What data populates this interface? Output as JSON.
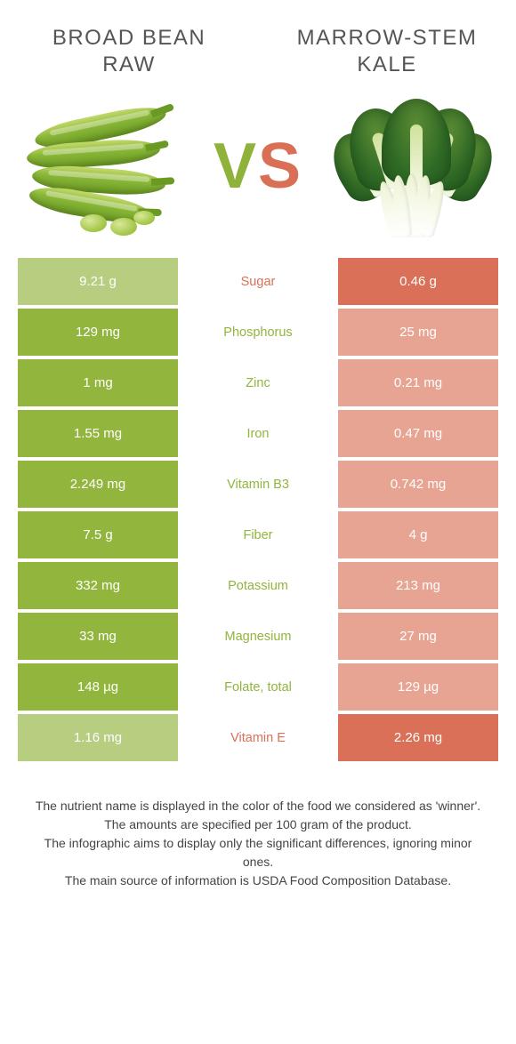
{
  "colors": {
    "left": "#91b53d",
    "right": "#da7057",
    "left_dim": "#b7cd7f",
    "right_dim": "#e8a493",
    "label_font": "#555555"
  },
  "header": {
    "left_title": "BROAD BEAN RAW",
    "right_title": "MARROW-STEM KALE"
  },
  "vs": {
    "v": "V",
    "s": "S"
  },
  "rows": [
    {
      "label": "Sugar",
      "left": "9.21 g",
      "right": "0.46 g",
      "winner": "right"
    },
    {
      "label": "Phosphorus",
      "left": "129 mg",
      "right": "25 mg",
      "winner": "left"
    },
    {
      "label": "Zinc",
      "left": "1 mg",
      "right": "0.21 mg",
      "winner": "left"
    },
    {
      "label": "Iron",
      "left": "1.55 mg",
      "right": "0.47 mg",
      "winner": "left"
    },
    {
      "label": "Vitamin B3",
      "left": "2.249 mg",
      "right": "0.742 mg",
      "winner": "left"
    },
    {
      "label": "Fiber",
      "left": "7.5 g",
      "right": "4 g",
      "winner": "left"
    },
    {
      "label": "Potassium",
      "left": "332 mg",
      "right": "213 mg",
      "winner": "left"
    },
    {
      "label": "Magnesium",
      "left": "33 mg",
      "right": "27 mg",
      "winner": "left"
    },
    {
      "label": "Folate, total",
      "left": "148 µg",
      "right": "129 µg",
      "winner": "left"
    },
    {
      "label": "Vitamin E",
      "left": "1.16 mg",
      "right": "2.26 mg",
      "winner": "right"
    }
  ],
  "footer": {
    "line1": "The nutrient name is displayed in the color of the food we considered as 'winner'.",
    "line2": "The amounts are specified per 100 gram of the product.",
    "line3": "The infographic aims to display only the significant differences, ignoring minor ones.",
    "line4": "The main source of information is USDA Food Composition Database."
  }
}
